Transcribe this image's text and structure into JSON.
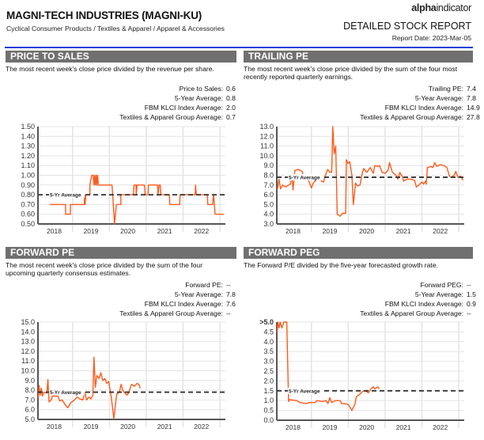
{
  "header": {
    "title": "MAGNI-TECH INDUSTRIES (MAGNI-KU)",
    "subtitle": "Cyclical Consumer Products / Textiles & Apparel / Apparel & Accessories",
    "logo_text": "alphaindicator",
    "report_title": "DETAILED STOCK REPORT",
    "report_date": "Report Date: 2023-Mar-05"
  },
  "colors": {
    "accent_rule": "#1f3fd8",
    "section_bar": "#707070",
    "series_line": "#ff5a1a",
    "average_line": "#333333"
  },
  "panels": [
    {
      "title": "PRICE TO SALES",
      "description": "The most recent week's close price divided by the revenue per share.",
      "stats": [
        {
          "label": "Price to Sales:",
          "value": "0.6"
        },
        {
          "label": "5-Year Average:",
          "value": "0.8"
        },
        {
          "label": "FBM KLCI Index Average:",
          "value": "2.0"
        },
        {
          "label": "Textiles & Apparel Group Average:",
          "value": "0.7"
        }
      ]
    },
    {
      "title": "TRAILING PE",
      "description": "The most recent week's close price divided by the sum of the four most recently reported quarterly earnings.",
      "stats": [
        {
          "label": "Trailing PE:",
          "value": "7.4"
        },
        {
          "label": "5-Year Average:",
          "value": "7.8"
        },
        {
          "label": "FBM KLCI Index Average:",
          "value": "14.9"
        },
        {
          "label": "Textiles & Apparel Group Average:",
          "value": "27.8"
        }
      ]
    },
    {
      "title": "FORWARD PE",
      "description": "The most recent week's close price divided by the sum of the four upcoming quarterly consensus estimates.",
      "stats": [
        {
          "label": "Forward PE:",
          "value": "--"
        },
        {
          "label": "5-Year Average:",
          "value": "7.8"
        },
        {
          "label": "FBM KLCI Index Average:",
          "value": "7.6"
        },
        {
          "label": "Textiles & Apparel Group Average:",
          "value": "--"
        }
      ]
    },
    {
      "title": "FORWARD PEG",
      "description": "The Forward P/E divided by the five-year forecasted growth rate.",
      "stats": [
        {
          "label": "Forward PEG:",
          "value": "--"
        },
        {
          "label": "5-Year Average:",
          "value": "1.5"
        },
        {
          "label": "FBM KLCI Index Average:",
          "value": "0.9"
        },
        {
          "label": "Textiles & Apparel Group Average:",
          "value": "--"
        }
      ]
    }
  ],
  "chart_data": [
    {
      "type": "line",
      "title": "",
      "xlabel": "",
      "ylabel": "",
      "grid": true,
      "xlim": [
        2018.06,
        2023.15
      ],
      "ylim": [
        0.5,
        1.5
      ],
      "x_ticks": [
        "2018",
        "2019",
        "2020",
        "2021",
        "2022"
      ],
      "y_ticks": [
        "0.50",
        "0.60",
        "0.70",
        "0.80",
        "0.90",
        "1.00",
        "1.10",
        "1.20",
        "1.30",
        "1.40",
        "1.50"
      ],
      "average": {
        "label": "5-Yr Average",
        "value": 0.8
      },
      "step": true,
      "points": [
        [
          2018.38,
          0.7
        ],
        [
          2018.81,
          0.7
        ],
        [
          2018.81,
          0.6
        ],
        [
          2018.94,
          0.6
        ],
        [
          2018.94,
          0.7
        ],
        [
          2019.32,
          0.7
        ],
        [
          2019.32,
          0.8
        ],
        [
          2019.34,
          0.7
        ],
        [
          2019.36,
          0.8
        ],
        [
          2019.47,
          0.8
        ],
        [
          2019.47,
          0.9
        ],
        [
          2019.52,
          1.0
        ],
        [
          2019.56,
          1.0
        ],
        [
          2019.58,
          0.9
        ],
        [
          2019.6,
          1.0
        ],
        [
          2019.62,
          0.9
        ],
        [
          2019.64,
          1.0
        ],
        [
          2019.66,
          0.9
        ],
        [
          2019.68,
          1.0
        ],
        [
          2019.7,
          0.9
        ],
        [
          2019.75,
          0.9
        ],
        [
          2020.07,
          0.9
        ],
        [
          2020.09,
          0.8
        ],
        [
          2020.14,
          0.5
        ],
        [
          2020.19,
          0.7
        ],
        [
          2020.31,
          0.7
        ],
        [
          2020.31,
          0.8
        ],
        [
          2020.65,
          0.8
        ],
        [
          2020.67,
          0.9
        ],
        [
          2020.72,
          0.9
        ],
        [
          2020.73,
          0.8
        ],
        [
          2020.75,
          0.9
        ],
        [
          2020.95,
          0.9
        ],
        [
          2020.97,
          0.8
        ],
        [
          2021.05,
          0.8
        ],
        [
          2021.06,
          0.9
        ],
        [
          2021.31,
          0.9
        ],
        [
          2021.32,
          0.8
        ],
        [
          2021.35,
          0.9
        ],
        [
          2021.38,
          0.9
        ],
        [
          2021.4,
          0.8
        ],
        [
          2021.63,
          0.8
        ],
        [
          2021.64,
          0.7
        ],
        [
          2021.91,
          0.7
        ],
        [
          2021.92,
          0.8
        ],
        [
          2022.33,
          0.8
        ],
        [
          2022.34,
          0.9
        ],
        [
          2022.36,
          0.8
        ],
        [
          2022.66,
          0.8
        ],
        [
          2022.67,
          0.7
        ],
        [
          2022.8,
          0.7
        ],
        [
          2022.83,
          0.8
        ],
        [
          2022.87,
          0.6
        ],
        [
          2023.1,
          0.6
        ]
      ]
    },
    {
      "type": "line",
      "title": "",
      "xlabel": "",
      "ylabel": "",
      "grid": true,
      "xlim": [
        2018.06,
        2023.15
      ],
      "ylim": [
        3.0,
        13.0
      ],
      "x_ticks": [
        "2018",
        "2019",
        "2020",
        "2021",
        "2022"
      ],
      "y_ticks": [
        "3.0",
        "4.0",
        "5.0",
        "6.0",
        "7.0",
        "8.0",
        "9.0",
        "10.0",
        "11.0",
        "12.0",
        "13.0"
      ],
      "average": {
        "label": "5-Yr Average",
        "value": 7.8
      },
      "points": [
        [
          2018.08,
          6.6
        ],
        [
          2018.12,
          7.6
        ],
        [
          2018.16,
          6.6
        ],
        [
          2018.22,
          7.0
        ],
        [
          2018.3,
          6.8
        ],
        [
          2018.38,
          7.0
        ],
        [
          2018.43,
          7.1
        ],
        [
          2018.47,
          8.0
        ],
        [
          2018.5,
          6.5
        ],
        [
          2018.55,
          8.5
        ],
        [
          2018.65,
          8.6
        ],
        [
          2018.75,
          8.4
        ],
        [
          2018.8,
          7.6
        ],
        [
          2018.88,
          7.9
        ],
        [
          2018.95,
          7.2
        ],
        [
          2019.0,
          6.7
        ],
        [
          2019.05,
          7.2
        ],
        [
          2019.12,
          7.5
        ],
        [
          2019.2,
          7.7
        ],
        [
          2019.28,
          7.4
        ],
        [
          2019.33,
          7.3
        ],
        [
          2019.38,
          8.0
        ],
        [
          2019.44,
          8.6
        ],
        [
          2019.5,
          8.3
        ],
        [
          2019.55,
          8.3
        ],
        [
          2019.58,
          13.0
        ],
        [
          2019.62,
          10.2
        ],
        [
          2019.66,
          11.0
        ],
        [
          2019.7,
          4.0
        ],
        [
          2019.78,
          3.8
        ],
        [
          2019.85,
          4.1
        ],
        [
          2019.93,
          4.1
        ],
        [
          2019.95,
          9.6
        ],
        [
          2020.0,
          9.2
        ],
        [
          2020.04,
          9.4
        ],
        [
          2020.1,
          8.0
        ],
        [
          2020.14,
          5.0
        ],
        [
          2020.2,
          7.2
        ],
        [
          2020.25,
          6.9
        ],
        [
          2020.32,
          7.0
        ],
        [
          2020.38,
          8.2
        ],
        [
          2020.42,
          8.7
        ],
        [
          2020.5,
          8.3
        ],
        [
          2020.6,
          8.8
        ],
        [
          2020.68,
          8.2
        ],
        [
          2020.72,
          9.0
        ],
        [
          2020.8,
          8.9
        ],
        [
          2020.85,
          9.0
        ],
        [
          2020.92,
          8.3
        ],
        [
          2021.0,
          8.2
        ],
        [
          2021.08,
          8.5
        ],
        [
          2021.12,
          9.3
        ],
        [
          2021.2,
          8.3
        ],
        [
          2021.3,
          8.0
        ],
        [
          2021.35,
          7.6
        ],
        [
          2021.4,
          8.3
        ],
        [
          2021.48,
          7.8
        ],
        [
          2021.5,
          7.4
        ],
        [
          2021.6,
          7.6
        ],
        [
          2021.7,
          7.6
        ],
        [
          2021.8,
          7.5
        ],
        [
          2021.85,
          6.8
        ],
        [
          2021.92,
          7.0
        ],
        [
          2022.0,
          7.3
        ],
        [
          2022.05,
          7.1
        ],
        [
          2022.1,
          7.4
        ],
        [
          2022.12,
          7.1
        ],
        [
          2022.15,
          8.8
        ],
        [
          2022.25,
          8.9
        ],
        [
          2022.3,
          8.8
        ],
        [
          2022.35,
          9.3
        ],
        [
          2022.4,
          8.9
        ],
        [
          2022.5,
          9.1
        ],
        [
          2022.6,
          9.0
        ],
        [
          2022.68,
          8.8
        ],
        [
          2022.75,
          7.9
        ],
        [
          2022.8,
          7.8
        ],
        [
          2022.88,
          8.0
        ],
        [
          2022.92,
          8.4
        ],
        [
          2022.98,
          7.8
        ],
        [
          2023.05,
          7.9
        ],
        [
          2023.12,
          7.5
        ]
      ]
    },
    {
      "type": "line",
      "title": "",
      "xlabel": "",
      "ylabel": "",
      "grid": true,
      "xlim": [
        2018.06,
        2023.15
      ],
      "ylim": [
        5.0,
        15.0
      ],
      "x_ticks": [
        "2018",
        "2019",
        "2020",
        "2021",
        "2022"
      ],
      "y_ticks": [
        "5.0",
        "6.0",
        "7.0",
        "8.0",
        "9.0",
        "10.0",
        "11.0",
        "12.0",
        "13.0",
        "14.0",
        "15.0"
      ],
      "average": {
        "label": "5-Yr Average",
        "value": 7.8
      },
      "points": [
        [
          2018.07,
          7.2
        ],
        [
          2018.09,
          8.5
        ],
        [
          2018.12,
          7.5
        ],
        [
          2018.15,
          8.2
        ],
        [
          2018.18,
          7.4
        ],
        [
          2018.22,
          7.8
        ],
        [
          2018.3,
          7.7
        ],
        [
          2018.33,
          9.1
        ],
        [
          2018.36,
          6.8
        ],
        [
          2018.42,
          7.0
        ],
        [
          2018.45,
          7.4
        ],
        [
          2018.6,
          7.4
        ],
        [
          2018.65,
          6.9
        ],
        [
          2018.72,
          7.0
        ],
        [
          2018.8,
          6.5
        ],
        [
          2018.87,
          6.2
        ],
        [
          2018.95,
          6.7
        ],
        [
          2019.05,
          7.0
        ],
        [
          2019.12,
          7.3
        ],
        [
          2019.2,
          7.1
        ],
        [
          2019.28,
          7.0
        ],
        [
          2019.33,
          7.8
        ],
        [
          2019.38,
          7.0
        ],
        [
          2019.45,
          7.3
        ],
        [
          2019.5,
          7.1
        ],
        [
          2019.55,
          7.5
        ],
        [
          2019.58,
          11.4
        ],
        [
          2019.62,
          8.3
        ],
        [
          2019.66,
          9.5
        ],
        [
          2019.72,
          9.2
        ],
        [
          2019.77,
          9.8
        ],
        [
          2019.82,
          9.0
        ],
        [
          2019.88,
          9.2
        ],
        [
          2019.93,
          8.7
        ],
        [
          2019.98,
          8.9
        ],
        [
          2020.05,
          7.3
        ],
        [
          2020.12,
          5.1
        ],
        [
          2020.2,
          7.6
        ],
        [
          2020.27,
          7.8
        ],
        [
          2020.32,
          8.6
        ],
        [
          2020.36,
          8.0
        ],
        [
          2020.42,
          7.7
        ],
        [
          2020.48,
          7.5
        ],
        [
          2020.53,
          7.8
        ],
        [
          2020.6,
          8.6
        ],
        [
          2020.68,
          8.4
        ],
        [
          2020.75,
          8.7
        ],
        [
          2020.8,
          8.6
        ],
        [
          2020.84,
          8.2
        ]
      ]
    },
    {
      "type": "line",
      "title": "",
      "xlabel": "",
      "ylabel": "",
      "grid": true,
      "xlim": [
        2018.06,
        2023.15
      ],
      "ylim": [
        0.0,
        5.0
      ],
      "x_ticks": [
        "2018",
        "2019",
        "2020",
        "2021",
        "2022"
      ],
      "y_ticks": [
        "0.0",
        "0.5",
        "1.0",
        "1.5",
        "2.0",
        "2.5",
        "3.0",
        "3.5",
        "4.0",
        "4.5",
        ">5.0"
      ],
      "average": {
        "label": "5-Yr Average",
        "value": 1.5
      },
      "points": [
        [
          2018.07,
          4.5
        ],
        [
          2018.09,
          5.0
        ],
        [
          2018.12,
          4.7
        ],
        [
          2018.15,
          5.0
        ],
        [
          2018.2,
          4.7
        ],
        [
          2018.25,
          5.0
        ],
        [
          2018.33,
          5.0
        ],
        [
          2018.38,
          0.95
        ],
        [
          2018.4,
          1.05
        ],
        [
          2018.6,
          1.0
        ],
        [
          2018.7,
          0.9
        ],
        [
          2018.85,
          0.85
        ],
        [
          2018.95,
          0.9
        ],
        [
          2019.1,
          0.9
        ],
        [
          2019.15,
          1.0
        ],
        [
          2019.3,
          0.95
        ],
        [
          2019.4,
          1.0
        ],
        [
          2019.45,
          0.85
        ],
        [
          2019.5,
          1.15
        ],
        [
          2019.55,
          0.9
        ],
        [
          2019.65,
          1.0
        ],
        [
          2019.78,
          1.0
        ],
        [
          2019.82,
          0.85
        ],
        [
          2019.9,
          0.85
        ],
        [
          2020.0,
          0.8
        ],
        [
          2020.1,
          0.5
        ],
        [
          2020.18,
          0.8
        ],
        [
          2020.22,
          1.2
        ],
        [
          2020.3,
          1.3
        ],
        [
          2020.38,
          1.45
        ],
        [
          2020.45,
          1.5
        ],
        [
          2020.55,
          1.4
        ],
        [
          2020.62,
          1.6
        ],
        [
          2020.68,
          1.7
        ],
        [
          2020.72,
          1.6
        ],
        [
          2020.8,
          1.7
        ],
        [
          2020.84,
          1.6
        ]
      ]
    }
  ]
}
